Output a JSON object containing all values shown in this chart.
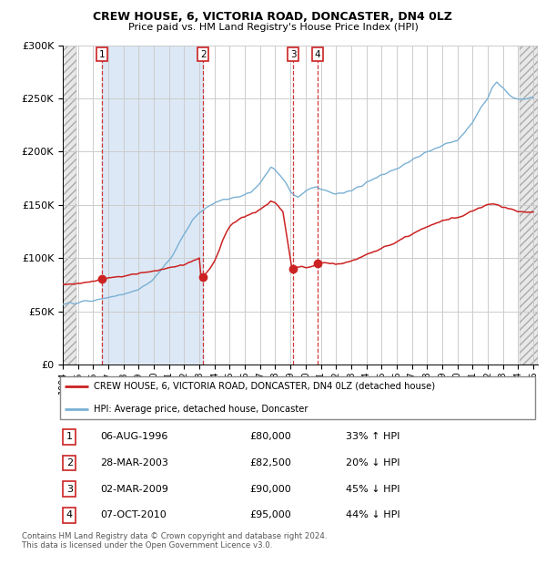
{
  "title": "CREW HOUSE, 6, VICTORIA ROAD, DONCASTER, DN4 0LZ",
  "subtitle": "Price paid vs. HM Land Registry's House Price Index (HPI)",
  "footer": "Contains HM Land Registry data © Crown copyright and database right 2024.\nThis data is licensed under the Open Government Licence v3.0.",
  "legend_label_red": "CREW HOUSE, 6, VICTORIA ROAD, DONCASTER, DN4 0LZ (detached house)",
  "legend_label_blue": "HPI: Average price, detached house, Doncaster",
  "transactions": [
    {
      "num": 1,
      "date_str": "06-AUG-1996",
      "date_x": 1996.6,
      "price": 80000,
      "label": "33% ↑ HPI"
    },
    {
      "num": 2,
      "date_str": "28-MAR-2003",
      "date_x": 2003.24,
      "price": 82500,
      "label": "20% ↓ HPI"
    },
    {
      "num": 3,
      "date_str": "02-MAR-2009",
      "date_x": 2009.17,
      "price": 90000,
      "label": "45% ↓ HPI"
    },
    {
      "num": 4,
      "date_str": "07-OCT-2010",
      "date_x": 2010.77,
      "price": 95000,
      "label": "44% ↓ HPI"
    }
  ],
  "ylim": [
    0,
    300000
  ],
  "xlim": [
    1994.0,
    2025.3
  ],
  "hatch_color": "#d0d0d0",
  "highlight_color": "#dce8f5",
  "plot_bg": "#ffffff",
  "red_color": "#cc2222",
  "blue_color": "#7ab0d4",
  "grid_color": "#cccccc",
  "hpi_key_points": [
    [
      1994.0,
      57000
    ],
    [
      1994.5,
      57500
    ],
    [
      1995.0,
      58000
    ],
    [
      1995.5,
      59000
    ],
    [
      1996.0,
      60000
    ],
    [
      1996.5,
      61500
    ],
    [
      1997.0,
      63000
    ],
    [
      1997.5,
      64000
    ],
    [
      1998.0,
      66000
    ],
    [
      1998.5,
      68000
    ],
    [
      1999.0,
      71000
    ],
    [
      1999.5,
      75000
    ],
    [
      2000.0,
      81000
    ],
    [
      2000.5,
      89000
    ],
    [
      2001.0,
      98000
    ],
    [
      2001.5,
      110000
    ],
    [
      2002.0,
      122000
    ],
    [
      2002.5,
      135000
    ],
    [
      2003.0,
      143000
    ],
    [
      2003.5,
      148000
    ],
    [
      2004.0,
      152000
    ],
    [
      2004.5,
      155000
    ],
    [
      2005.0,
      156000
    ],
    [
      2005.5,
      157000
    ],
    [
      2006.0,
      159000
    ],
    [
      2006.5,
      163000
    ],
    [
      2007.0,
      170000
    ],
    [
      2007.3,
      177000
    ],
    [
      2007.7,
      185000
    ],
    [
      2008.0,
      183000
    ],
    [
      2008.3,
      178000
    ],
    [
      2008.7,
      170000
    ],
    [
      2009.0,
      162000
    ],
    [
      2009.3,
      158000
    ],
    [
      2009.5,
      157000
    ],
    [
      2009.8,
      160000
    ],
    [
      2010.0,
      163000
    ],
    [
      2010.3,
      166000
    ],
    [
      2010.7,
      167000
    ],
    [
      2011.0,
      165000
    ],
    [
      2011.5,
      162000
    ],
    [
      2012.0,
      160000
    ],
    [
      2012.5,
      161000
    ],
    [
      2013.0,
      163000
    ],
    [
      2013.5,
      167000
    ],
    [
      2014.0,
      172000
    ],
    [
      2014.5,
      175000
    ],
    [
      2015.0,
      178000
    ],
    [
      2015.5,
      181000
    ],
    [
      2016.0,
      184000
    ],
    [
      2016.5,
      188000
    ],
    [
      2017.0,
      192000
    ],
    [
      2017.5,
      196000
    ],
    [
      2018.0,
      200000
    ],
    [
      2018.5,
      203000
    ],
    [
      2019.0,
      206000
    ],
    [
      2019.5,
      209000
    ],
    [
      2020.0,
      211000
    ],
    [
      2020.5,
      218000
    ],
    [
      2021.0,
      228000
    ],
    [
      2021.5,
      240000
    ],
    [
      2022.0,
      250000
    ],
    [
      2022.3,
      260000
    ],
    [
      2022.6,
      265000
    ],
    [
      2023.0,
      260000
    ],
    [
      2023.3,
      255000
    ],
    [
      2023.7,
      250000
    ],
    [
      2024.0,
      249000
    ],
    [
      2024.5,
      250000
    ],
    [
      2025.0,
      251000
    ]
  ],
  "red_key_points": [
    [
      1994.0,
      75000
    ],
    [
      1994.5,
      75500
    ],
    [
      1995.0,
      76000
    ],
    [
      1995.5,
      77000
    ],
    [
      1996.0,
      78000
    ],
    [
      1996.5,
      80000
    ],
    [
      1997.0,
      81000
    ],
    [
      1997.5,
      82000
    ],
    [
      1998.0,
      83000
    ],
    [
      1998.5,
      84500
    ],
    [
      1999.0,
      85500
    ],
    [
      1999.5,
      86500
    ],
    [
      2000.0,
      87500
    ],
    [
      2000.5,
      89000
    ],
    [
      2001.0,
      90500
    ],
    [
      2001.5,
      92000
    ],
    [
      2002.0,
      94000
    ],
    [
      2002.5,
      97000
    ],
    [
      2003.0,
      100000
    ],
    [
      2003.1,
      82500
    ],
    [
      2003.3,
      84000
    ],
    [
      2003.7,
      90000
    ],
    [
      2004.0,
      97000
    ],
    [
      2004.3,
      107000
    ],
    [
      2004.5,
      115000
    ],
    [
      2004.7,
      122000
    ],
    [
      2005.0,
      130000
    ],
    [
      2005.3,
      134000
    ],
    [
      2005.7,
      137000
    ],
    [
      2006.0,
      139000
    ],
    [
      2006.3,
      141000
    ],
    [
      2006.7,
      143000
    ],
    [
      2007.0,
      146000
    ],
    [
      2007.3,
      149000
    ],
    [
      2007.5,
      151000
    ],
    [
      2007.7,
      154000
    ],
    [
      2008.0,
      152000
    ],
    [
      2008.2,
      149000
    ],
    [
      2008.5,
      144000
    ],
    [
      2009.1,
      90000
    ],
    [
      2009.3,
      91000
    ],
    [
      2009.5,
      91500
    ],
    [
      2009.7,
      92000
    ],
    [
      2010.0,
      91000
    ],
    [
      2010.5,
      92000
    ],
    [
      2010.77,
      95000
    ],
    [
      2011.0,
      96000
    ],
    [
      2011.5,
      95000
    ],
    [
      2012.0,
      94000
    ],
    [
      2012.5,
      95000
    ],
    [
      2013.0,
      97000
    ],
    [
      2013.5,
      100000
    ],
    [
      2014.0,
      103000
    ],
    [
      2014.5,
      106000
    ],
    [
      2015.0,
      109000
    ],
    [
      2015.5,
      112000
    ],
    [
      2016.0,
      115000
    ],
    [
      2016.5,
      119000
    ],
    [
      2017.0,
      122000
    ],
    [
      2017.5,
      126000
    ],
    [
      2018.0,
      129000
    ],
    [
      2018.5,
      132000
    ],
    [
      2019.0,
      135000
    ],
    [
      2019.5,
      137000
    ],
    [
      2020.0,
      138000
    ],
    [
      2020.5,
      141000
    ],
    [
      2021.0,
      144000
    ],
    [
      2021.5,
      147000
    ],
    [
      2022.0,
      150000
    ],
    [
      2022.3,
      151000
    ],
    [
      2022.6,
      150000
    ],
    [
      2023.0,
      148000
    ],
    [
      2023.5,
      146000
    ],
    [
      2024.0,
      144000
    ],
    [
      2024.5,
      143000
    ],
    [
      2025.0,
      143000
    ]
  ]
}
